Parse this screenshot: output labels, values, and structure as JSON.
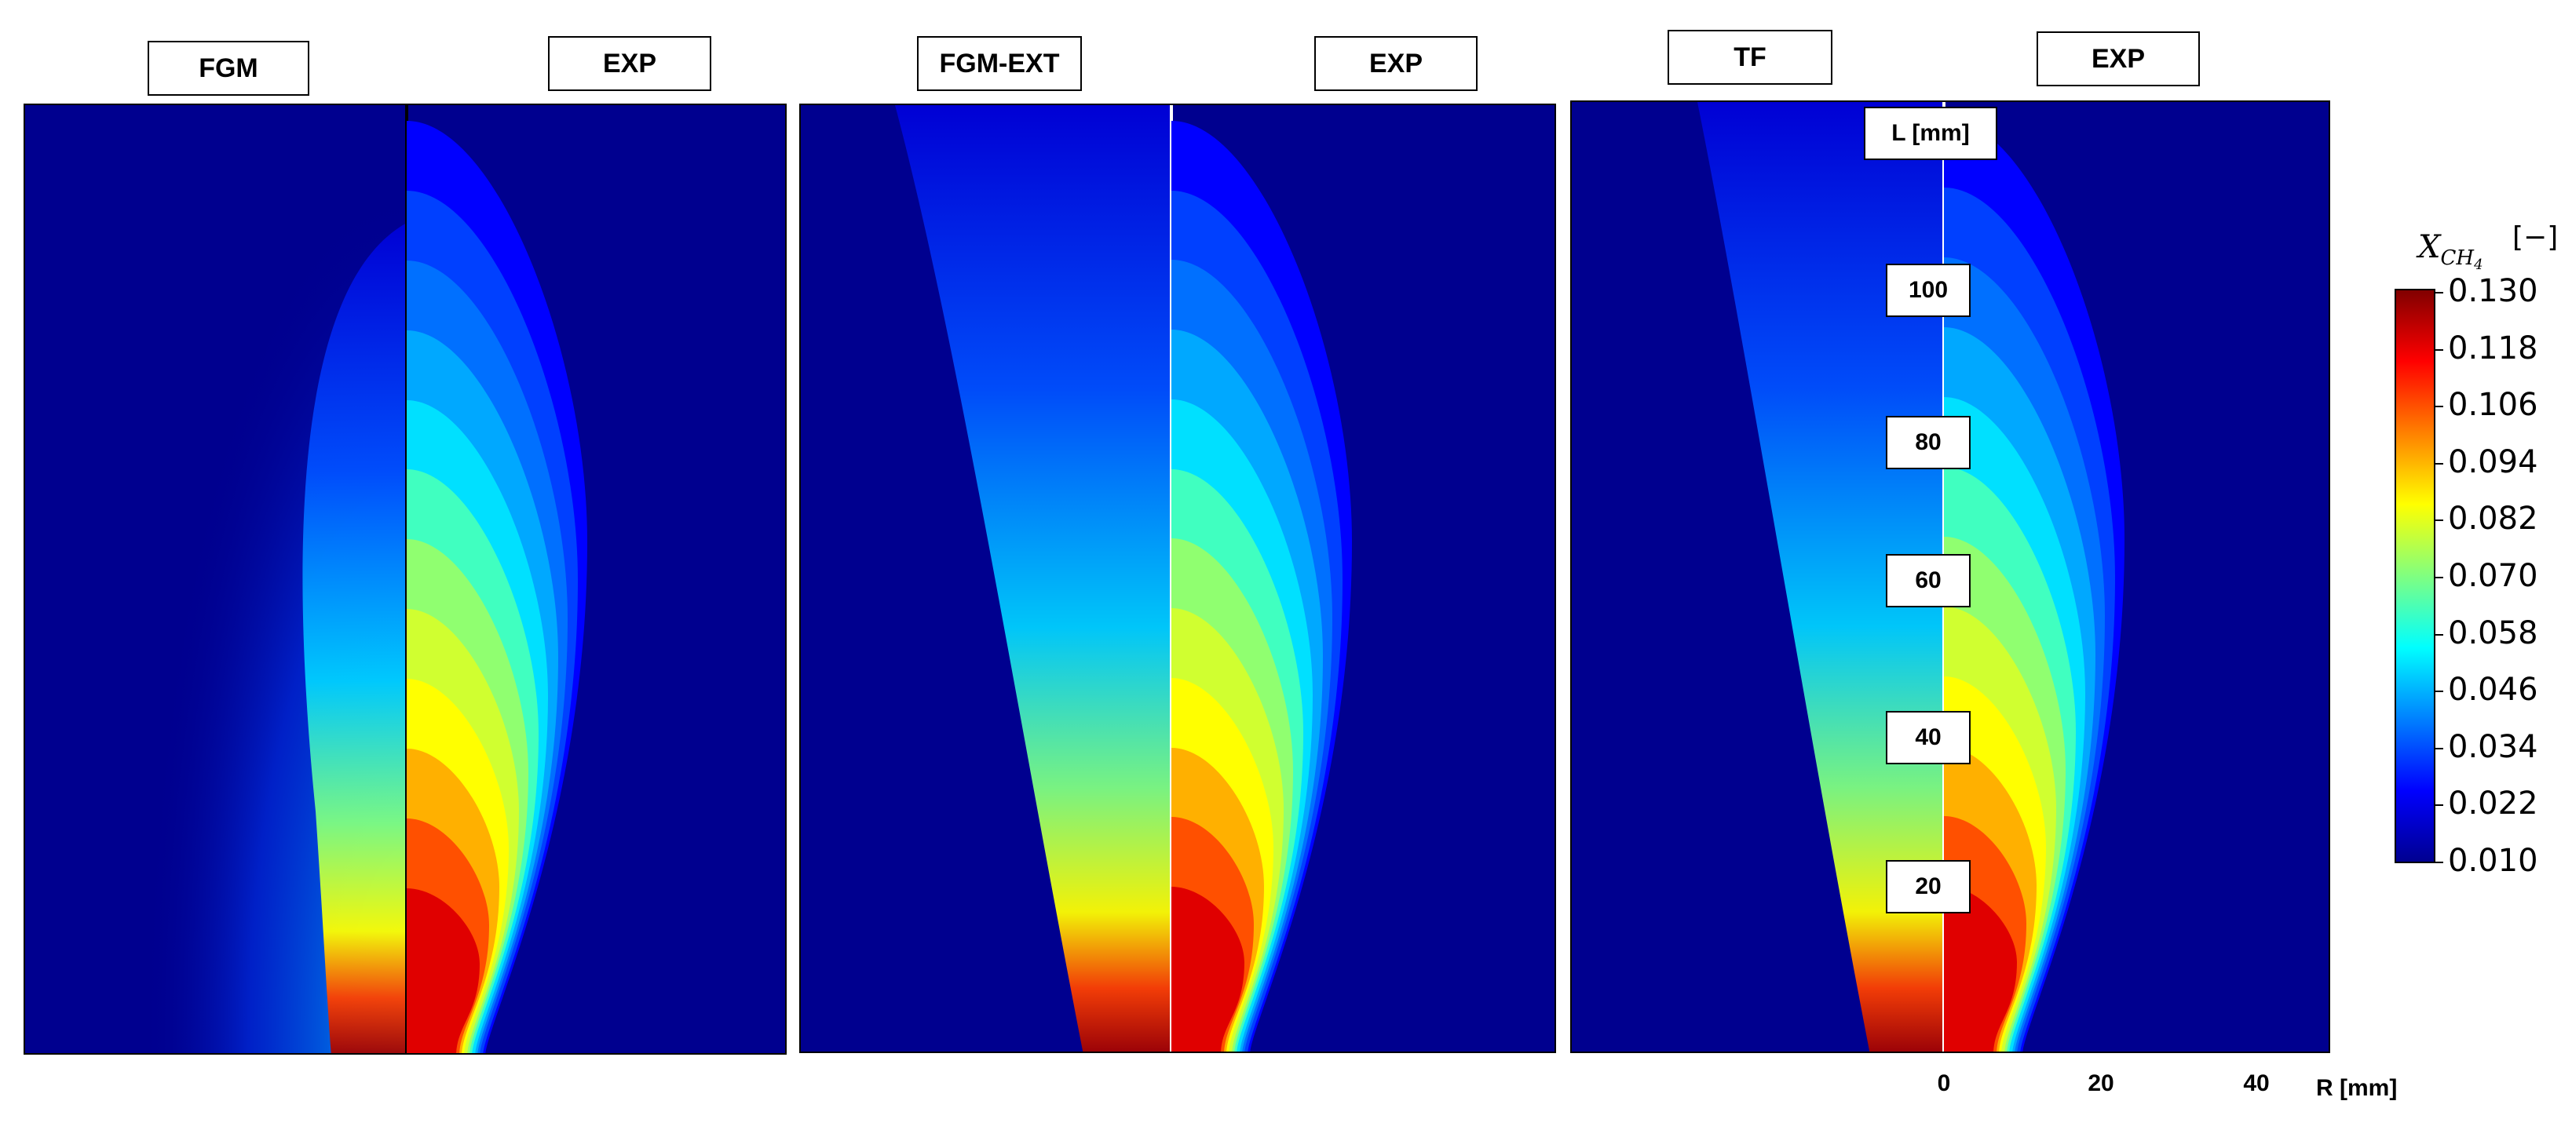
{
  "chart_data": {
    "type": "heatmap",
    "quantity": "X_CH4",
    "panels": [
      {
        "left_label": "FGM",
        "right_label": "EXP"
      },
      {
        "left_label": "FGM-EXT",
        "right_label": "EXP"
      },
      {
        "left_label": "TF",
        "right_label": "EXP"
      }
    ],
    "colorbar": {
      "title_main": "X",
      "title_sub": "CH",
      "title_subsub": "4",
      "unit": "[−]",
      "range": [
        0.01,
        0.13
      ],
      "ticks": [
        "0.130",
        "0.118",
        "0.106",
        "0.094",
        "0.082",
        "0.070",
        "0.058",
        "0.046",
        "0.034",
        "0.022",
        "0.010"
      ]
    },
    "axis_L": {
      "title": "L [mm]",
      "ticks": [
        "100",
        "80",
        "60",
        "40",
        "20"
      ]
    },
    "axis_R": {
      "title": "R [mm]",
      "ticks": [
        "0",
        "20",
        "40"
      ]
    },
    "colormap": [
      "#00008f",
      "#0000ff",
      "#0080ff",
      "#00ffff",
      "#80ff80",
      "#ffff00",
      "#ff8000",
      "#ff0000",
      "#800000"
    ]
  }
}
